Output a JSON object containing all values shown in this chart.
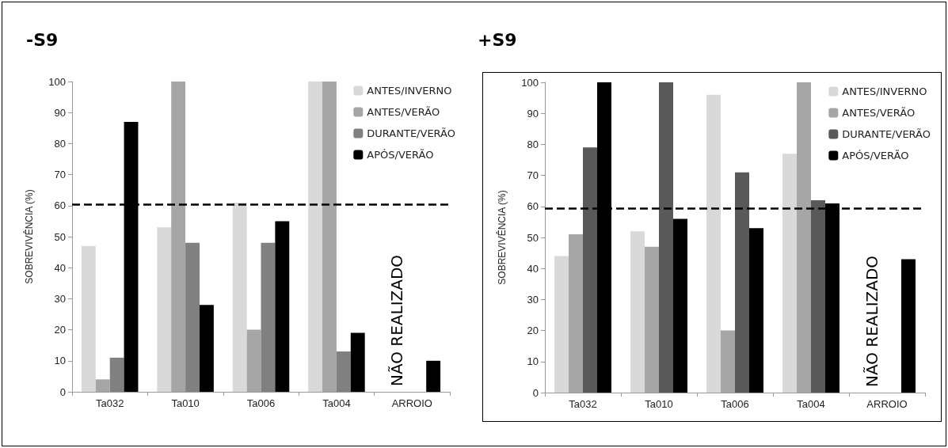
{
  "chart_data": [
    {
      "type": "bar",
      "title": "-S9",
      "ylabel": "SOBREVIVÊNCIA (%)",
      "categories": [
        "Ta032",
        "Ta010",
        "Ta006",
        "Ta004",
        "ARROIO"
      ],
      "ylim": [
        0,
        100
      ],
      "yticks": [
        0,
        10,
        20,
        30,
        40,
        50,
        60,
        70,
        80,
        90,
        100
      ],
      "grid": false,
      "legend": "top right",
      "series": [
        {
          "name": "ANTES/INVERNO",
          "color": "#d9d9d9",
          "values": [
            47,
            53,
            61,
            100,
            null
          ]
        },
        {
          "name": "ANTES/VERÃO",
          "color": "#a6a6a6",
          "values": [
            4,
            100,
            20,
            100,
            null
          ]
        },
        {
          "name": "DURANTE/VERÃO",
          "color": "#808080",
          "values": [
            11,
            48,
            48,
            13,
            null
          ]
        },
        {
          "name": "APÓS/VERÃO",
          "color": "#000000",
          "values": [
            87,
            28,
            55,
            19,
            10
          ]
        }
      ],
      "ref_lines": [
        {
          "axis": "y",
          "value": 60.5,
          "color": "#000000",
          "line_style": "dashed"
        }
      ],
      "annotations": [
        "NÃO REALIZADO"
      ]
    },
    {
      "type": "bar",
      "title": "+S9",
      "ylabel": "SOBREVIVÊNCIA (%)",
      "categories": [
        "Ta032",
        "Ta010",
        "Ta006",
        "Ta004",
        "ARROIO"
      ],
      "ylim": [
        0,
        100
      ],
      "yticks": [
        0,
        10,
        20,
        30,
        40,
        50,
        60,
        70,
        80,
        90,
        100
      ],
      "grid": false,
      "legend": "top right",
      "series": [
        {
          "name": "ANTES/INVERNO",
          "color": "#d9d9d9",
          "values": [
            44,
            52,
            96,
            77,
            null
          ]
        },
        {
          "name": "ANTES/VERÃO",
          "color": "#a6a6a6",
          "values": [
            51,
            47,
            20,
            100,
            null
          ]
        },
        {
          "name": "DURANTE/VERÃO",
          "color": "#595959",
          "values": [
            79,
            100,
            71,
            62,
            null
          ]
        },
        {
          "name": "APÓS/VERÃO",
          "color": "#000000",
          "values": [
            100,
            56,
            53,
            61,
            43
          ]
        }
      ],
      "ref_lines": [
        {
          "axis": "y",
          "value": 59.5,
          "color": "#000000",
          "line_style": "dashed"
        }
      ],
      "annotations": [
        "NÃO REALIZADO"
      ]
    }
  ]
}
